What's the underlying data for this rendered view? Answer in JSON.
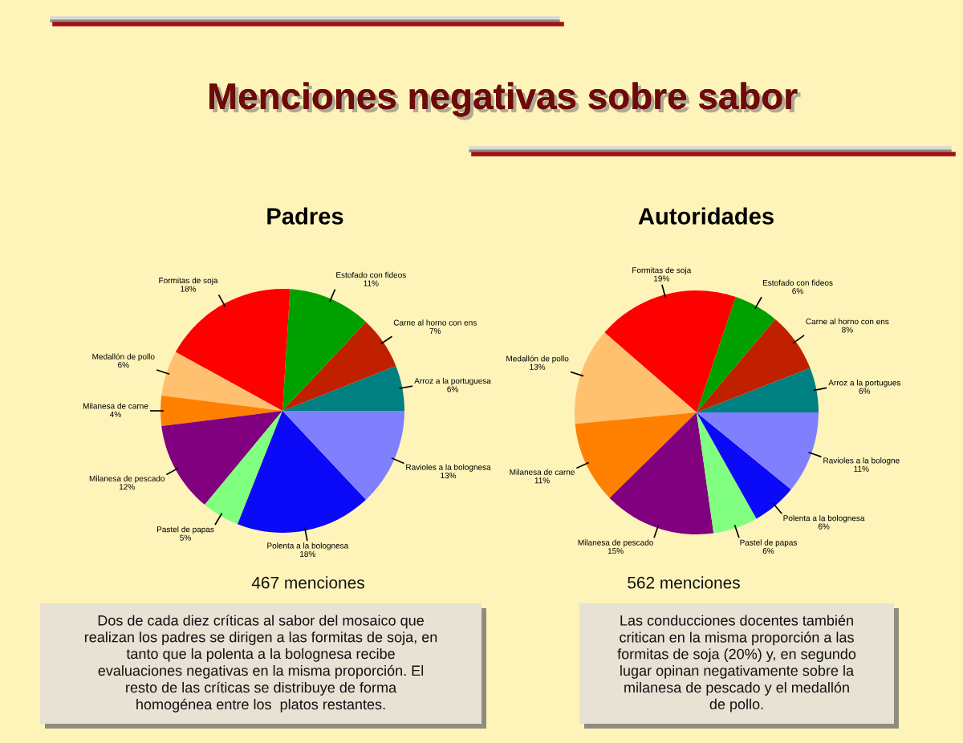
{
  "chart_data": [
    {
      "type": "other",
      "title": "Menciones negativas sobre sabor"
    },
    {
      "type": "pie",
      "title": "Padres",
      "categories": [
        "Arroz a la portuguesa",
        "Carne al horno con ens",
        "Estofado con fideos",
        "Formitas de soja",
        "Medallón de pollo",
        "Milanesa de carne",
        "Milanesa de pescado",
        "Pastel de papas",
        "Polenta a la bolognesa",
        "Ravioles a la bolognesa"
      ],
      "values": [
        6,
        7,
        11,
        18,
        6,
        4,
        12,
        5,
        18,
        13
      ],
      "value_labels": [
        "6%",
        "7%",
        "11%",
        "18%",
        "6%",
        "4%",
        "12%",
        "5%",
        "18%",
        "13%"
      ],
      "colors": [
        "#008080",
        "#c02000",
        "#00a000",
        "#ff0000",
        "#ffc070",
        "#ff8000",
        "#800080",
        "#80ff80",
        "#0a0af8",
        "#8080ff"
      ],
      "annotations": [
        "467 menciones",
        "Dos de cada diez críticas al sabor del mosaico que\nrealizan los padres se dirigen a las formitas de soja, en\ntanto que la polenta a la bolognesa recibe\nevaluaciones negativas en la misma proporción. El\nresto de las críticas se distribuye de forma\nhomogénea entre los  platos restantes."
      ]
    },
    {
      "type": "pie",
      "title": "Autoridades",
      "categories": [
        "Arroz a la portugues",
        "Carne al horno con ens",
        "Estofado con fideos",
        "Formitas de soja",
        "Medallón de pollo",
        "Milanesa de carne",
        "Milanesa de pescado",
        "Pastel de papas",
        "Polenta a la bolognesa",
        "Ravioles a la bologne"
      ],
      "values": [
        6,
        8,
        6,
        19,
        13,
        11,
        15,
        6,
        6,
        11
      ],
      "value_labels": [
        "6%",
        "8%",
        "6%",
        "19%",
        "13%",
        "11%",
        "15%",
        "6%",
        "6%",
        "11%"
      ],
      "colors": [
        "#008080",
        "#c02000",
        "#00a000",
        "#ff0000",
        "#ffc070",
        "#ff8000",
        "#800080",
        "#80ff80",
        "#0a0af8",
        "#8080ff"
      ],
      "annotations": [
        "562 menciones",
        "Las conducciones docentes también\ncritican en la misma proporción a las\nformitas de soja (20%) y, en segundo\nlugar opinan negativamente sobre la\nmilanesa de pescado y el medallón\nde pollo."
      ]
    }
  ]
}
